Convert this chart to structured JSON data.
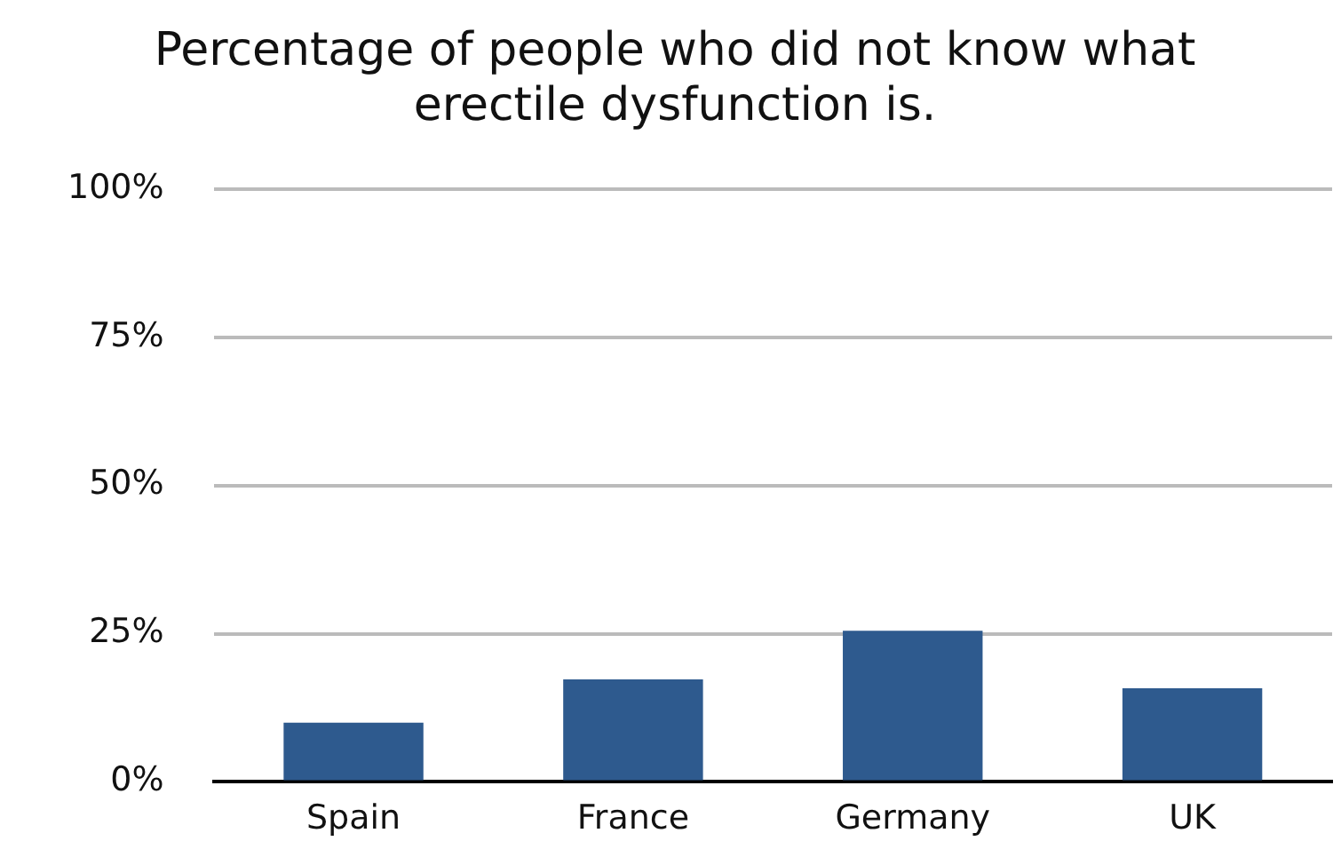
{
  "chart_data": {
    "type": "bar",
    "title": "Percentage of people who did not know what erectile dysfunction is.",
    "categories": [
      "Spain",
      "France",
      "Germany",
      "UK"
    ],
    "values": [
      10,
      17.3,
      25.5,
      15.8
    ],
    "color": "#2e5a8e",
    "ylim": [
      0,
      100
    ],
    "yticks": [
      {
        "value": 0,
        "label": "0%"
      },
      {
        "value": 25,
        "label": "25%"
      },
      {
        "value": 50,
        "label": "50%"
      },
      {
        "value": 75,
        "label": "75%"
      },
      {
        "value": 100,
        "label": "100%"
      }
    ],
    "grid": "y",
    "legend": false
  }
}
